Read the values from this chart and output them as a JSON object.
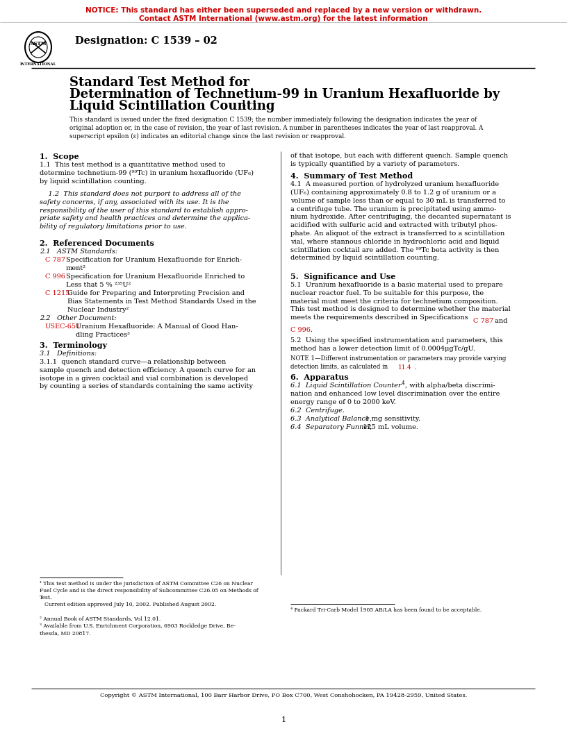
{
  "notice_line1": "NOTICE: This standard has either been superseded and replaced by a new version or withdrawn.",
  "notice_line2": "Contact ASTM International (www.astm.org) for the latest information",
  "red_color": "#CC0000",
  "designation": "Designation: C 1539 – 02",
  "title_line1": "Standard Test Method for",
  "title_line2": "Determination of Technetium-99 in Uranium Hexafluoride by",
  "title_line3": "Liquid Scintillation Counting",
  "subtitle": "This standard is issued under the fixed designation C 1539; the number immediately following the designation indicates the year of\noriginal adoption or, in the case of revision, the year of last revision. A number in parentheses indicates the year of last reapproval. A\nsuperscript epsilon (ε) indicates an editorial change since the last revision or reapproval.",
  "footer": "Copyright © ASTM International, 100 Barr Harbor Drive, PO Box C700, West Conshohocken, PA 19428-2959, United States.",
  "page_num": "1",
  "bg_color": "#FFFFFF"
}
